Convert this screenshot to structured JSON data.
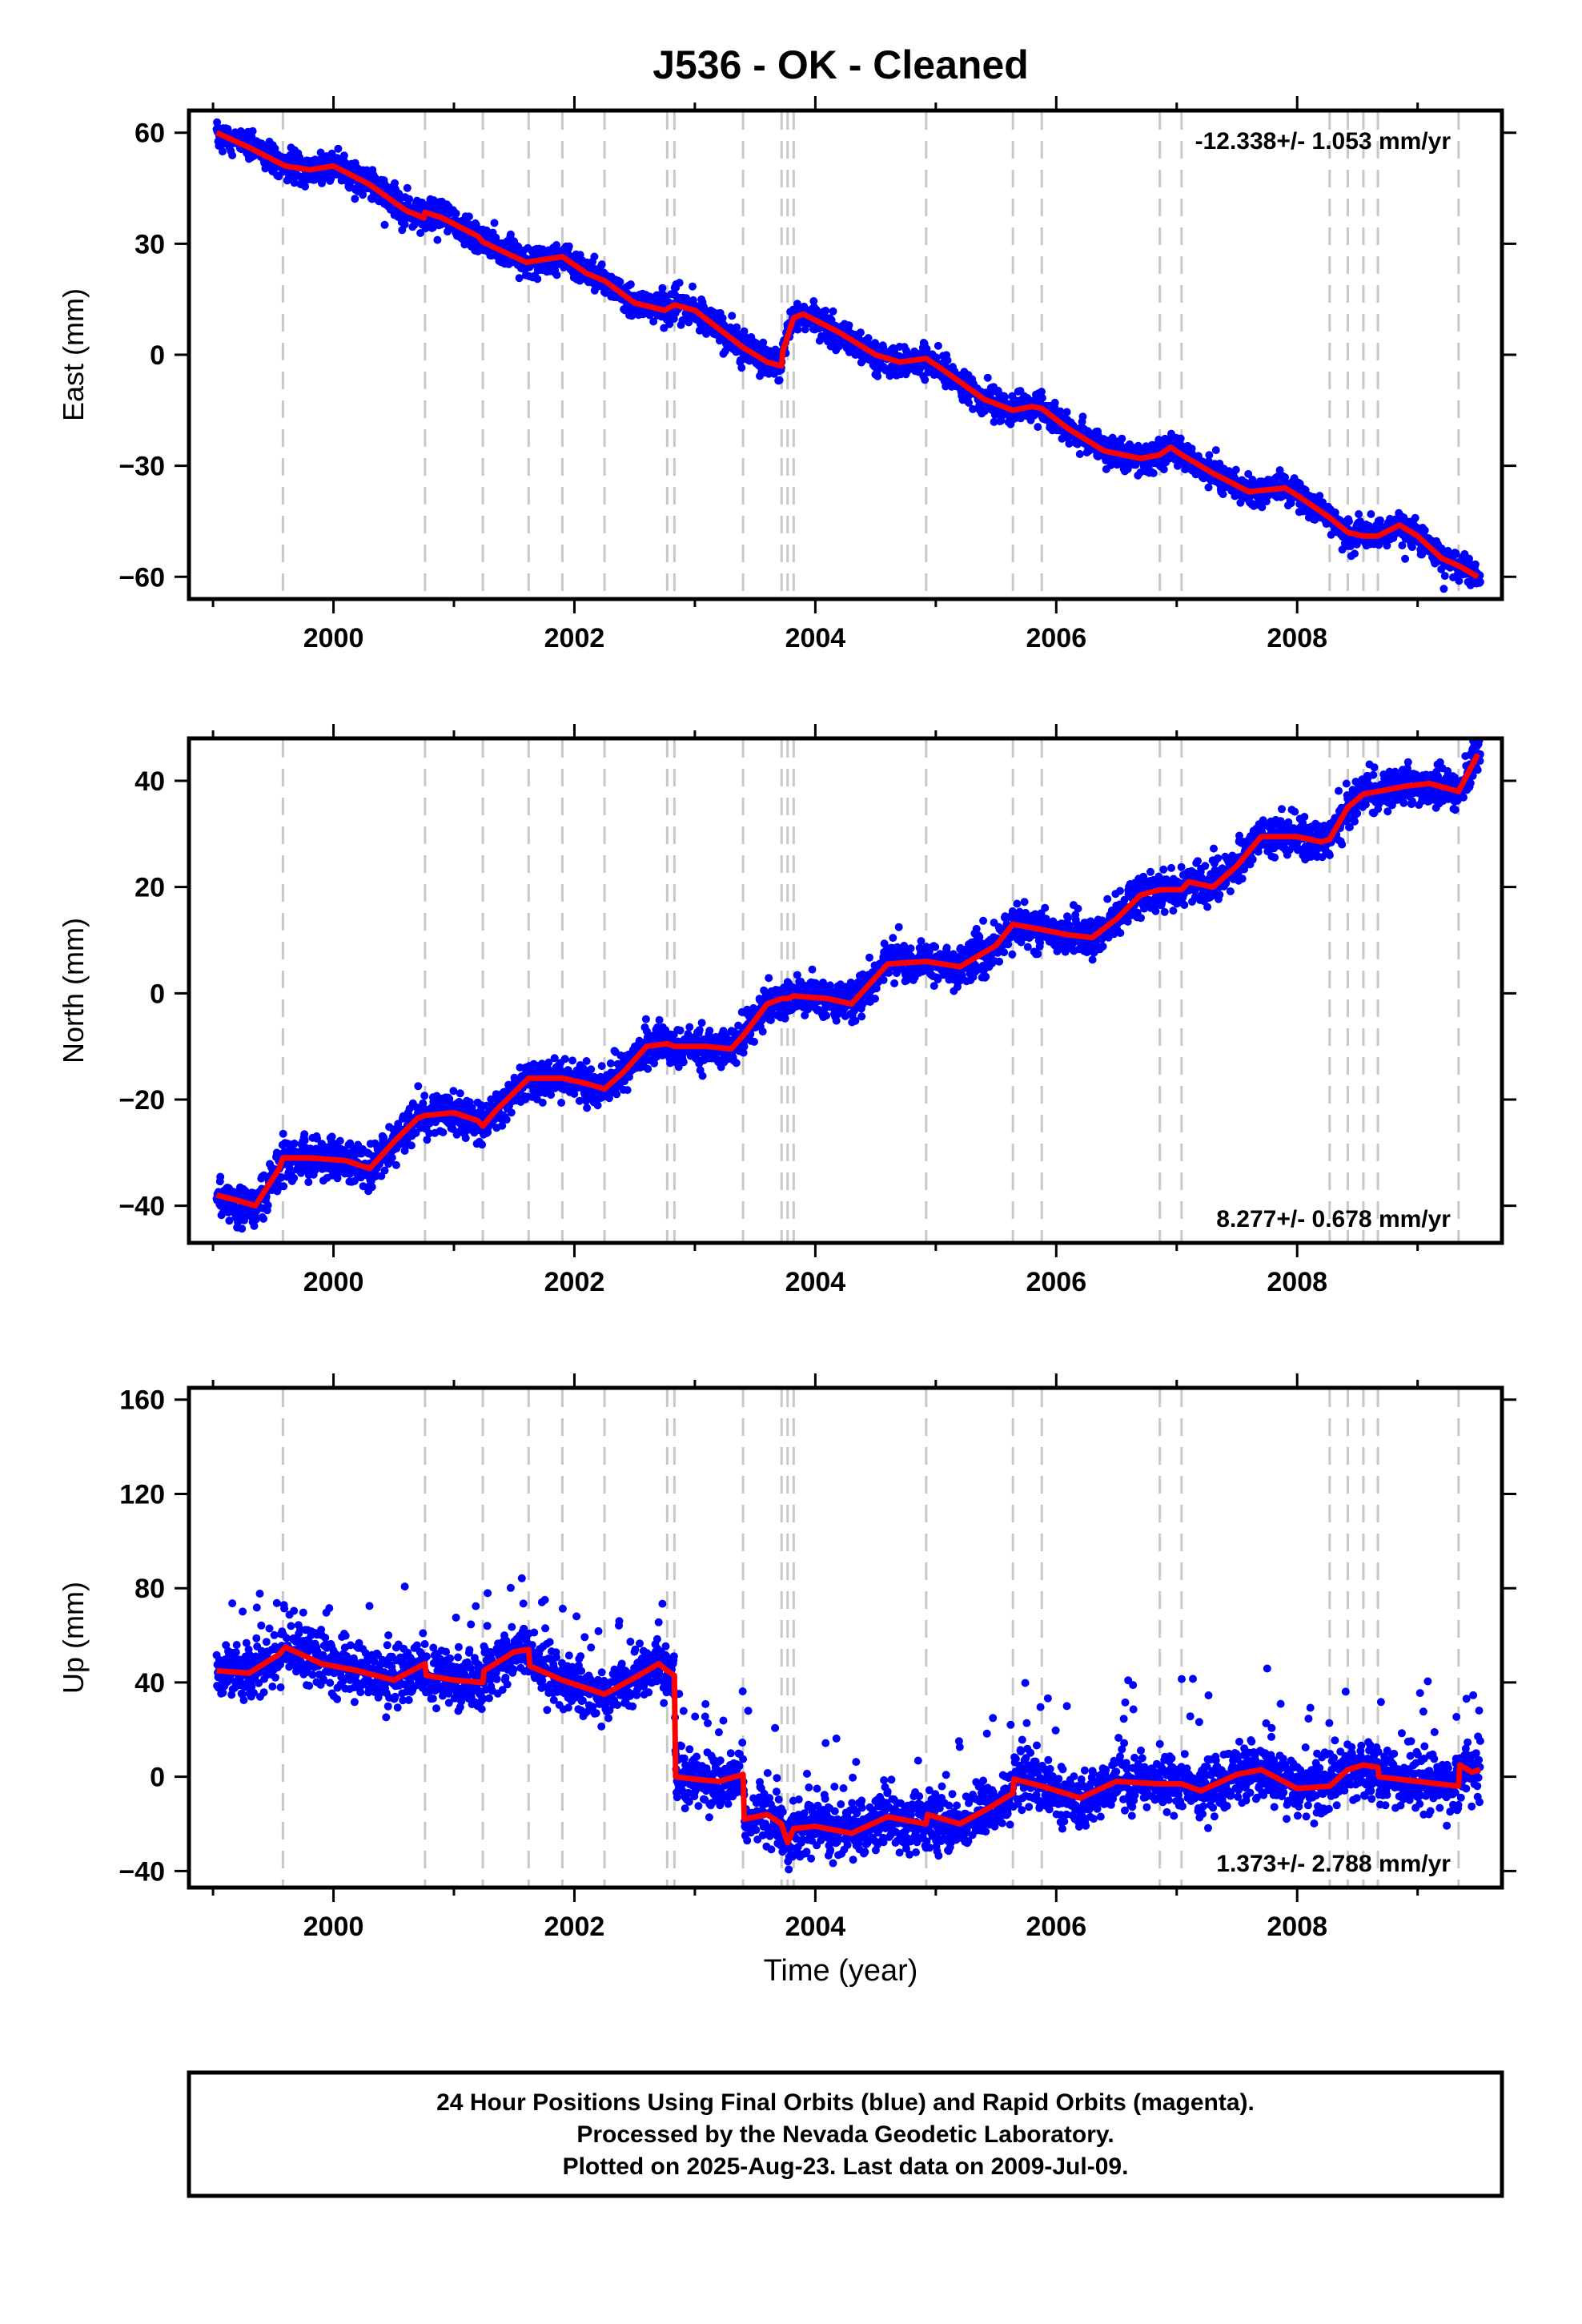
{
  "title": "J536  - OK - Cleaned",
  "xlabel": "Time (year)",
  "colors": {
    "points": "#0000ff",
    "model": "#ff0000",
    "steps": "#c8c8c8"
  },
  "footer": {
    "lines": [
      "24 Hour Positions Using Final Orbits (blue) and Rapid Orbits (magenta).",
      "Processed by the Nevada Geodetic Laboratory.",
      "Plotted on 2025-Aug-23. Last data on 2009-Jul-09."
    ]
  },
  "chart_data": [
    {
      "type": "scatter",
      "name": "east",
      "ylabel": "East (mm)",
      "rate_label": "-12.338+/- 1.053 mm/yr",
      "rate_position": "top-right",
      "xlim": [
        1998.8,
        2009.7
      ],
      "ylim": [
        -66,
        66
      ],
      "xticks": [
        2000,
        2002,
        2004,
        2006,
        2008
      ],
      "yticks": [
        -60,
        -30,
        0,
        30,
        60
      ],
      "equipment_changes": [
        1999.58,
        2000.76,
        2001.24,
        2001.62,
        2001.9,
        2002.25,
        2002.77,
        2002.83,
        2003.4,
        2003.72,
        2003.77,
        2003.82,
        2004.92,
        2005.64,
        2005.88,
        2006.86,
        2007.04,
        2008.27,
        2008.42,
        2008.55,
        2008.67,
        2009.34
      ],
      "model": [
        [
          1999.03,
          60
        ],
        [
          1999.3,
          56
        ],
        [
          1999.6,
          51
        ],
        [
          1999.8,
          50
        ],
        [
          2000.0,
          51
        ],
        [
          2000.3,
          46
        ],
        [
          2000.6,
          39
        ],
        [
          2000.75,
          37
        ],
        [
          2000.76,
          38.5
        ],
        [
          2000.9,
          37
        ],
        [
          2001.2,
          32
        ],
        [
          2001.24,
          30.5
        ],
        [
          2001.4,
          28
        ],
        [
          2001.6,
          25
        ],
        [
          2001.8,
          26
        ],
        [
          2001.9,
          26.5
        ],
        [
          2002.1,
          22
        ],
        [
          2002.25,
          20
        ],
        [
          2002.5,
          14
        ],
        [
          2002.75,
          12
        ],
        [
          2002.83,
          13.5
        ],
        [
          2003.0,
          12
        ],
        [
          2003.2,
          7
        ],
        [
          2003.4,
          2
        ],
        [
          2003.6,
          -2
        ],
        [
          2003.72,
          -3
        ],
        [
          2003.73,
          1
        ],
        [
          2003.77,
          5
        ],
        [
          2003.82,
          10
        ],
        [
          2003.9,
          11
        ],
        [
          2004.2,
          6
        ],
        [
          2004.5,
          0
        ],
        [
          2004.7,
          -2
        ],
        [
          2004.92,
          -1
        ],
        [
          2005.1,
          -5
        ],
        [
          2005.4,
          -12
        ],
        [
          2005.64,
          -15
        ],
        [
          2005.8,
          -14
        ],
        [
          2005.88,
          -14.5
        ],
        [
          2006.1,
          -20
        ],
        [
          2006.4,
          -26
        ],
        [
          2006.7,
          -28
        ],
        [
          2006.86,
          -27
        ],
        [
          2006.95,
          -25
        ],
        [
          2007.04,
          -27
        ],
        [
          2007.3,
          -32
        ],
        [
          2007.6,
          -37
        ],
        [
          2007.9,
          -36
        ],
        [
          2008.0,
          -38
        ],
        [
          2008.27,
          -44
        ],
        [
          2008.42,
          -48
        ],
        [
          2008.55,
          -49
        ],
        [
          2008.67,
          -49
        ],
        [
          2008.85,
          -46
        ],
        [
          2009.0,
          -49
        ],
        [
          2009.2,
          -55
        ],
        [
          2009.34,
          -57
        ],
        [
          2009.5,
          -60
        ]
      ],
      "points": {
        "count": 3400,
        "start": 1999.03,
        "end": 2009.52,
        "scatter_mm": 2.0
      }
    },
    {
      "type": "scatter",
      "name": "north",
      "ylabel": "North (mm)",
      "rate_label": "8.277+/- 0.678 mm/yr",
      "rate_position": "bottom-right",
      "xlim": [
        1998.8,
        2009.7
      ],
      "ylim": [
        -47,
        48
      ],
      "xticks": [
        2000,
        2002,
        2004,
        2006,
        2008
      ],
      "yticks": [
        -40,
        -20,
        0,
        20,
        40
      ],
      "equipment_changes": [
        1999.58,
        2000.76,
        2001.24,
        2001.62,
        2001.9,
        2002.25,
        2002.77,
        2002.83,
        2003.4,
        2003.72,
        2003.77,
        2003.82,
        2004.92,
        2005.64,
        2005.88,
        2006.86,
        2007.04,
        2008.27,
        2008.42,
        2008.55,
        2008.67,
        2009.34
      ],
      "model": [
        [
          1999.03,
          -38
        ],
        [
          1999.2,
          -39
        ],
        [
          1999.35,
          -40
        ],
        [
          1999.55,
          -33
        ],
        [
          1999.58,
          -31
        ],
        [
          1999.8,
          -31
        ],
        [
          2000.1,
          -31.5
        ],
        [
          2000.3,
          -33
        ],
        [
          2000.5,
          -28
        ],
        [
          2000.7,
          -23.5
        ],
        [
          2000.76,
          -23
        ],
        [
          2001.0,
          -22.5
        ],
        [
          2001.2,
          -24
        ],
        [
          2001.24,
          -25
        ],
        [
          2001.35,
          -22
        ],
        [
          2001.62,
          -16
        ],
        [
          2001.9,
          -16
        ],
        [
          2002.1,
          -17
        ],
        [
          2002.25,
          -18
        ],
        [
          2002.4,
          -15
        ],
        [
          2002.6,
          -10
        ],
        [
          2002.77,
          -9.5
        ],
        [
          2002.83,
          -10
        ],
        [
          2003.1,
          -10
        ],
        [
          2003.3,
          -10.5
        ],
        [
          2003.4,
          -8
        ],
        [
          2003.6,
          -2
        ],
        [
          2003.72,
          -1
        ],
        [
          2003.77,
          -1
        ],
        [
          2003.82,
          -0.5
        ],
        [
          2004.1,
          -1
        ],
        [
          2004.3,
          -2
        ],
        [
          2004.5,
          3
        ],
        [
          2004.6,
          5.5
        ],
        [
          2004.92,
          6
        ],
        [
          2005.2,
          5
        ],
        [
          2005.5,
          9
        ],
        [
          2005.64,
          13
        ],
        [
          2005.88,
          12
        ],
        [
          2006.1,
          11
        ],
        [
          2006.3,
          10.5
        ],
        [
          2006.5,
          14
        ],
        [
          2006.7,
          18.5
        ],
        [
          2006.86,
          19.5
        ],
        [
          2007.04,
          19.5
        ],
        [
          2007.1,
          21
        ],
        [
          2007.3,
          20
        ],
        [
          2007.5,
          24
        ],
        [
          2007.7,
          29.5
        ],
        [
          2008.0,
          29.5
        ],
        [
          2008.2,
          28.5
        ],
        [
          2008.27,
          29
        ],
        [
          2008.42,
          35
        ],
        [
          2008.55,
          37.5
        ],
        [
          2008.67,
          38
        ],
        [
          2008.9,
          39
        ],
        [
          2009.1,
          39.5
        ],
        [
          2009.34,
          38
        ],
        [
          2009.5,
          45
        ]
      ],
      "points": {
        "count": 3400,
        "start": 1999.03,
        "end": 2009.52,
        "scatter_mm": 1.8
      }
    },
    {
      "type": "scatter",
      "name": "up",
      "ylabel": "Up (mm)",
      "rate_label": "1.373+/- 2.788 mm/yr",
      "rate_position": "bottom-right",
      "xlim": [
        1998.8,
        2009.7
      ],
      "ylim": [
        -47,
        165
      ],
      "xticks": [
        2000,
        2002,
        2004,
        2006,
        2008
      ],
      "yticks": [
        -40,
        0,
        40,
        80,
        120,
        160
      ],
      "equipment_changes": [
        1999.58,
        2000.76,
        2001.24,
        2001.62,
        2001.9,
        2002.25,
        2002.77,
        2002.83,
        2003.4,
        2003.72,
        2003.77,
        2003.82,
        2004.92,
        2005.64,
        2005.88,
        2006.86,
        2007.04,
        2008.27,
        2008.42,
        2008.55,
        2008.67,
        2009.34
      ],
      "model": [
        [
          1999.03,
          45
        ],
        [
          1999.3,
          44
        ],
        [
          1999.55,
          52
        ],
        [
          1999.6,
          55
        ],
        [
          1999.9,
          48
        ],
        [
          2000.2,
          45
        ],
        [
          2000.5,
          41
        ],
        [
          2000.76,
          48
        ],
        [
          2000.77,
          43
        ],
        [
          2001.0,
          41
        ],
        [
          2001.24,
          40
        ],
        [
          2001.25,
          45
        ],
        [
          2001.5,
          53
        ],
        [
          2001.62,
          54
        ],
        [
          2001.63,
          47
        ],
        [
          2001.9,
          41
        ],
        [
          2002.25,
          35
        ],
        [
          2002.5,
          42
        ],
        [
          2002.7,
          48
        ],
        [
          2002.77,
          45
        ],
        [
          2002.83,
          43
        ],
        [
          2002.84,
          0
        ],
        [
          2003.0,
          -1
        ],
        [
          2003.2,
          -2
        ],
        [
          2003.4,
          1
        ],
        [
          2003.41,
          -18
        ],
        [
          2003.6,
          -16
        ],
        [
          2003.72,
          -20
        ],
        [
          2003.73,
          -22
        ],
        [
          2003.77,
          -28
        ],
        [
          2003.82,
          -22
        ],
        [
          2004.0,
          -21
        ],
        [
          2004.3,
          -24
        ],
        [
          2004.6,
          -17
        ],
        [
          2004.92,
          -20
        ],
        [
          2004.93,
          -16
        ],
        [
          2005.2,
          -20
        ],
        [
          2005.45,
          -13
        ],
        [
          2005.64,
          -7
        ],
        [
          2005.65,
          -1
        ],
        [
          2005.88,
          -4
        ],
        [
          2006.2,
          -9
        ],
        [
          2006.5,
          -2
        ],
        [
          2006.86,
          -3
        ],
        [
          2007.04,
          -3
        ],
        [
          2007.2,
          -6
        ],
        [
          2007.5,
          1
        ],
        [
          2007.7,
          3
        ],
        [
          2008.0,
          -5
        ],
        [
          2008.27,
          -4
        ],
        [
          2008.42,
          3
        ],
        [
          2008.55,
          5
        ],
        [
          2008.67,
          4
        ],
        [
          2008.68,
          0
        ],
        [
          2009.0,
          -2
        ],
        [
          2009.34,
          -4
        ],
        [
          2009.35,
          5
        ],
        [
          2009.45,
          2
        ],
        [
          2009.52,
          3
        ]
      ],
      "points": {
        "count": 3400,
        "start": 1999.03,
        "end": 2009.52,
        "scatter_mm": 6.0
      }
    }
  ]
}
